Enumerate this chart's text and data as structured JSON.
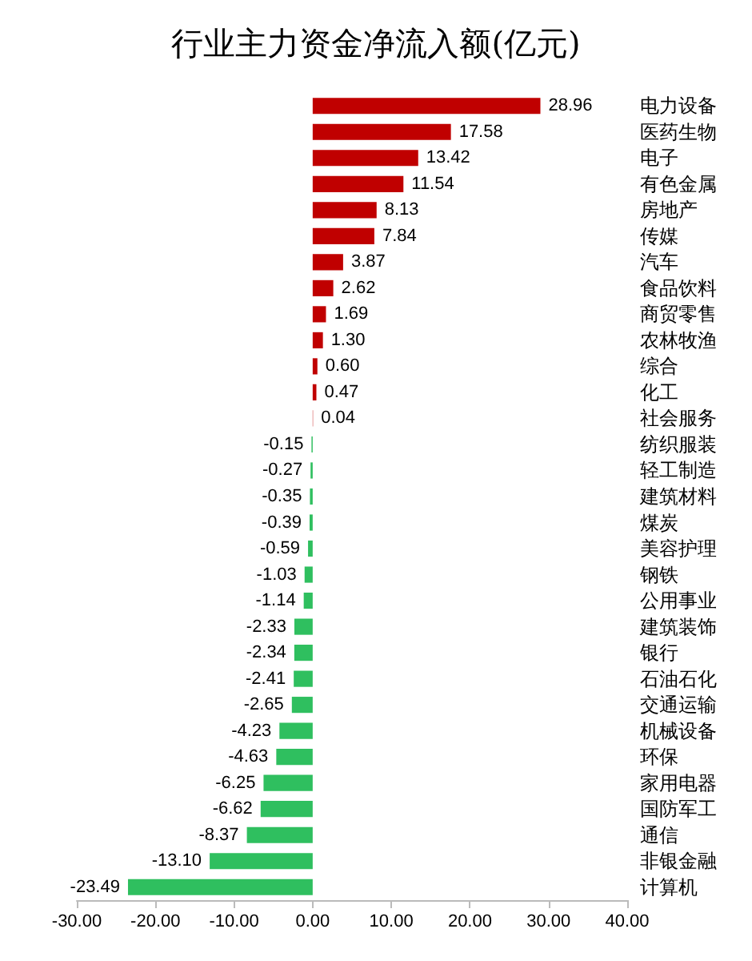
{
  "chart_data": {
    "type": "bar",
    "orientation": "horizontal",
    "title": "行业主力资金净流入额(亿元)",
    "categories": [
      "电力设备",
      "医药生物",
      "电子",
      "有色金属",
      "房地产",
      "传媒",
      "汽车",
      "食品饮料",
      "商贸零售",
      "农林牧渔",
      "综合",
      "化工",
      "社会服务",
      "纺织服装",
      "轻工制造",
      "建筑材料",
      "煤炭",
      "美容护理",
      "钢铁",
      "公用事业",
      "建筑装饰",
      "银行",
      "石油石化",
      "交通运输",
      "机械设备",
      "环保",
      "家用电器",
      "国防军工",
      "通信",
      "非银金融",
      "计算机"
    ],
    "values": [
      28.96,
      17.58,
      13.42,
      11.54,
      8.13,
      7.84,
      3.87,
      2.62,
      1.69,
      1.3,
      0.6,
      0.47,
      0.04,
      -0.15,
      -0.27,
      -0.35,
      -0.39,
      -0.59,
      -1.03,
      -1.14,
      -2.33,
      -2.34,
      -2.41,
      -2.65,
      -4.23,
      -4.63,
      -6.25,
      -6.62,
      -8.37,
      -13.1,
      -23.49
    ],
    "value_labels": [
      "28.96",
      "17.58",
      "13.42",
      "11.54",
      "8.13",
      "7.84",
      "3.87",
      "2.62",
      "1.69",
      "1.30",
      "0.60",
      "0.47",
      "0.04",
      "-0.15",
      "-0.27",
      "-0.35",
      "-0.39",
      "-0.59",
      "-1.03",
      "-1.14",
      "-2.33",
      "-2.34",
      "-2.41",
      "-2.65",
      "-4.23",
      "-4.63",
      "-6.25",
      "-6.62",
      "-8.37",
      "-13.10",
      "-23.49"
    ],
    "colors": [
      "#c00000",
      "#c00000",
      "#c00000",
      "#c00000",
      "#c00000",
      "#c00000",
      "#c00000",
      "#c00000",
      "#c00000",
      "#c00000",
      "#c00000",
      "#c00000",
      "#c00000",
      "#2fbf5f",
      "#2fbf5f",
      "#2fbf5f",
      "#2fbf5f",
      "#2fbf5f",
      "#2fbf5f",
      "#2fbf5f",
      "#2fbf5f",
      "#2fbf5f",
      "#2fbf5f",
      "#2fbf5f",
      "#2fbf5f",
      "#2fbf5f",
      "#2fbf5f",
      "#2fbf5f",
      "#2fbf5f",
      "#2fbf5f",
      "#2fbf5f"
    ],
    "xlim": [
      -30,
      40
    ],
    "xticks": [
      {
        "value": -30,
        "label": "-30.00"
      },
      {
        "value": -20,
        "label": "-20.00"
      },
      {
        "value": -10,
        "label": "-10.00"
      },
      {
        "value": 0,
        "label": "0.00"
      },
      {
        "value": 10,
        "label": "10.00"
      },
      {
        "value": 20,
        "label": "20.00"
      },
      {
        "value": 30,
        "label": "30.00"
      },
      {
        "value": 40,
        "label": "40.00"
      }
    ]
  }
}
